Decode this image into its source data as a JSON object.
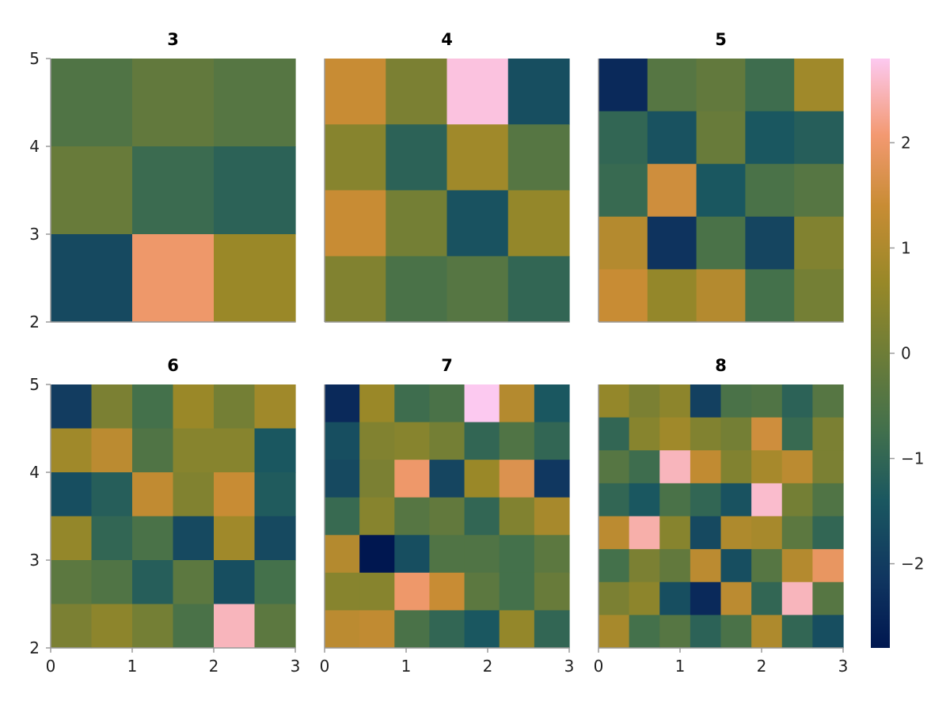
{
  "chart_data": {
    "type": "heatmap",
    "colormap": "batlow",
    "colorbar": {
      "range": [
        -2.8,
        2.8
      ],
      "ticks": [
        -2,
        -1,
        0,
        1,
        2
      ],
      "tick_labels": [
        "−2",
        "−1",
        "0",
        "1",
        "2"
      ],
      "position": "right"
    },
    "xlim": [
      0,
      3
    ],
    "ylim": [
      2,
      5
    ],
    "x_ticks": [
      0,
      1,
      2,
      3
    ],
    "y_ticks": [
      2,
      3,
      4,
      5
    ],
    "x_tick_labels": [
      "0",
      "1",
      "2",
      "3"
    ],
    "y_tick_labels": [
      "2",
      "3",
      "4",
      "5"
    ],
    "grid": false,
    "panels": [
      {
        "title": "3",
        "size": 3,
        "values": [
          [
            -0.5,
            -0.2,
            -0.4
          ],
          [
            -0.1,
            -0.85,
            -1.1
          ],
          [
            -1.7,
            2.0,
            0.7
          ]
        ]
      },
      {
        "title": "4",
        "size": 4,
        "values": [
          [
            1.4,
            0.2,
            2.7,
            -1.6
          ],
          [
            0.4,
            -1.1,
            0.8,
            -0.4
          ],
          [
            1.4,
            0.1,
            -1.5,
            0.6
          ],
          [
            0.3,
            -0.6,
            -0.4,
            -1.0
          ]
        ]
      },
      {
        "title": "5",
        "size": 5,
        "values": [
          [
            -2.4,
            -0.4,
            -0.2,
            -0.8,
            0.8
          ],
          [
            -1.0,
            -1.5,
            -0.1,
            -1.4,
            -1.2
          ],
          [
            -0.9,
            1.5,
            -1.4,
            -0.6,
            -0.4
          ],
          [
            1.1,
            -2.2,
            -0.6,
            -1.8,
            0.3
          ],
          [
            1.4,
            0.6,
            1.1,
            -0.7,
            0.1
          ]
        ]
      },
      {
        "title": "6",
        "size": 6,
        "values": [
          [
            -2.0,
            0.2,
            -0.7,
            0.7,
            0.1,
            0.8
          ],
          [
            0.8,
            1.2,
            -0.5,
            0.4,
            0.4,
            -1.4
          ],
          [
            -1.6,
            -1.2,
            1.3,
            0.3,
            1.4,
            -1.3
          ],
          [
            0.6,
            -1.0,
            -0.6,
            -1.7,
            0.8,
            -1.7
          ],
          [
            -0.3,
            -0.5,
            -1.2,
            -0.3,
            -1.6,
            -0.7
          ],
          [
            0.2,
            0.5,
            0.1,
            -0.6,
            2.5,
            -0.3
          ]
        ]
      },
      {
        "title": "7",
        "size": 7,
        "values": [
          [
            -2.4,
            0.7,
            -0.8,
            -0.6,
            2.8,
            1.1,
            -1.4
          ],
          [
            -1.6,
            0.3,
            0.4,
            0.1,
            -1.0,
            -0.5,
            -1.0
          ],
          [
            -1.7,
            0.2,
            2.0,
            -1.8,
            0.7,
            1.7,
            -2.1
          ],
          [
            -0.9,
            0.4,
            -0.4,
            -0.2,
            -1.0,
            0.3,
            0.9
          ],
          [
            1.1,
            -2.8,
            -1.6,
            -0.5,
            -0.5,
            -0.7,
            -0.3
          ],
          [
            0.4,
            0.4,
            2.0,
            1.4,
            -0.3,
            -0.7,
            -0.1
          ],
          [
            1.2,
            1.3,
            -0.6,
            -1.0,
            -1.4,
            0.6,
            -1.0
          ]
        ]
      },
      {
        "title": "8",
        "size": 8,
        "values": [
          [
            0.6,
            0.2,
            0.5,
            -1.9,
            -0.6,
            -0.5,
            -1.1,
            -0.4
          ],
          [
            -1.0,
            0.4,
            0.8,
            0.3,
            0.1,
            1.5,
            -0.9,
            0.2
          ],
          [
            -0.4,
            -0.8,
            2.5,
            1.3,
            0.3,
            0.9,
            1.2,
            0.2
          ],
          [
            -1.0,
            -1.4,
            -0.6,
            -1.0,
            -1.5,
            2.6,
            0.1,
            -0.5
          ],
          [
            1.2,
            2.4,
            0.4,
            -1.7,
            1.0,
            0.9,
            -0.3,
            -1.0
          ],
          [
            -0.7,
            0.2,
            -0.2,
            1.2,
            -1.6,
            -0.4,
            1.1,
            1.9
          ],
          [
            0.2,
            0.5,
            -1.6,
            -2.4,
            1.2,
            -1.0,
            2.5,
            -0.4
          ],
          [
            0.9,
            -0.7,
            -0.4,
            -1.1,
            -0.6,
            1.0,
            -1.0,
            -1.6
          ]
        ]
      }
    ]
  }
}
